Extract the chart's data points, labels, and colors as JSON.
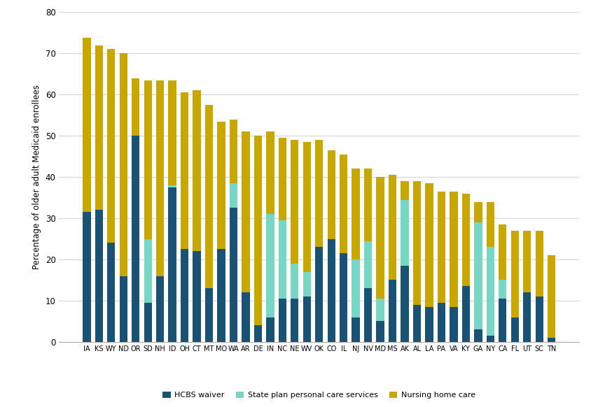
{
  "states": [
    "IA",
    "KS",
    "WY",
    "ND",
    "OR",
    "SD",
    "NH",
    "ID",
    "OH",
    "CT",
    "MT",
    "MO",
    "WA",
    "AR",
    "DE",
    "IN",
    "NC",
    "NE",
    "WV",
    "OK",
    "CO",
    "IL",
    "NJ",
    "NV",
    "MD",
    "MS",
    "AK",
    "AL",
    "LA",
    "PA",
    "VA",
    "KY",
    "GA",
    "NY",
    "CA",
    "FL",
    "UT",
    "SC",
    "TN"
  ],
  "hcbs": [
    31.5,
    32.0,
    24.0,
    16.0,
    50.0,
    9.5,
    16.0,
    37.5,
    22.5,
    22.0,
    13.0,
    22.5,
    32.5,
    12.0,
    4.0,
    6.0,
    10.5,
    10.5,
    11.0,
    23.0,
    25.0,
    21.5,
    6.0,
    13.0,
    5.0,
    15.0,
    18.5,
    9.0,
    8.5,
    9.5,
    8.5,
    13.5,
    3.0,
    1.5,
    10.5,
    6.0,
    12.0,
    11.0,
    1.0
  ],
  "spcs": [
    0.0,
    0.0,
    0.0,
    0.0,
    0.0,
    15.5,
    0.0,
    0.5,
    0.0,
    0.0,
    0.0,
    0.0,
    6.0,
    0.0,
    0.0,
    25.0,
    19.0,
    8.5,
    6.0,
    0.0,
    0.0,
    0.0,
    14.0,
    11.5,
    5.5,
    0.0,
    16.0,
    0.0,
    0.0,
    0.0,
    0.0,
    0.0,
    26.0,
    21.5,
    4.5,
    0.0,
    0.0,
    0.0,
    0.0
  ],
  "nh": [
    42.3,
    40.0,
    47.0,
    54.0,
    14.0,
    38.5,
    47.5,
    25.5,
    38.0,
    39.0,
    44.5,
    31.0,
    15.5,
    39.0,
    46.0,
    20.0,
    20.0,
    30.0,
    31.5,
    26.0,
    21.5,
    24.0,
    22.0,
    17.5,
    29.5,
    25.5,
    4.5,
    30.0,
    30.0,
    27.0,
    28.0,
    22.5,
    5.0,
    11.0,
    13.5,
    21.0,
    15.0,
    16.0,
    20.0
  ],
  "hcbs_color": "#1A5276",
  "spcs_color": "#76D7C4",
  "nh_color": "#C8A800",
  "ylabel": "Percentage of older adult Medicaid enrollees",
  "ylim": [
    0,
    80
  ],
  "yticks": [
    0,
    10,
    20,
    30,
    40,
    50,
    60,
    70,
    80
  ],
  "legend_labels": [
    "HCBS waiver",
    "State plan personal care services",
    "Nursing home care"
  ],
  "background_color": "#ffffff",
  "grid_color": "#d5d5d5",
  "bar_width": 0.65
}
